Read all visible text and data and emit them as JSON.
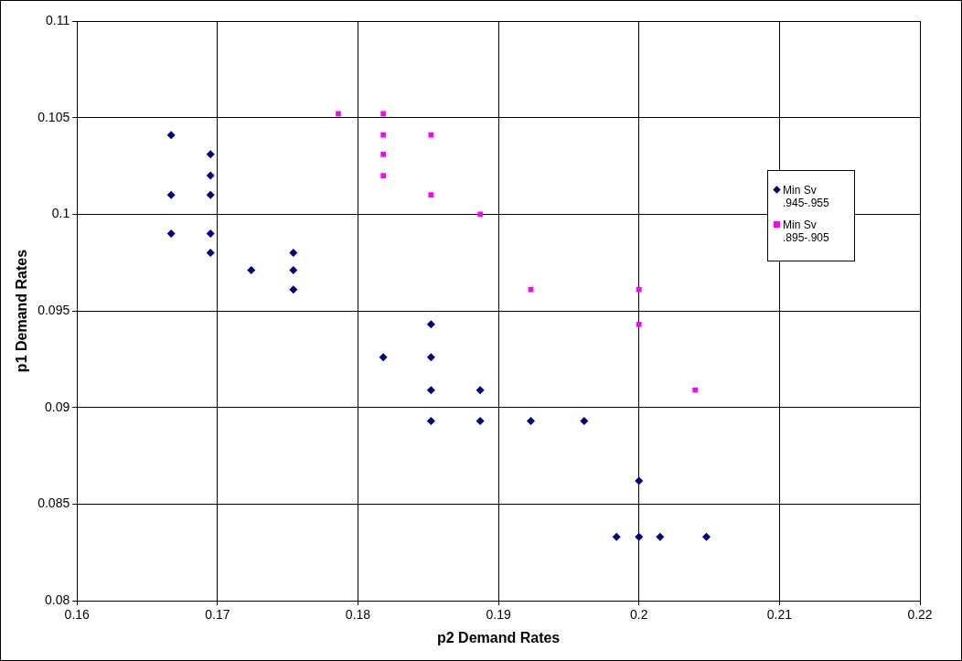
{
  "chart_data": {
    "type": "scatter",
    "xlabel": "p2 Demand Rates",
    "ylabel": "p1 Demand Rates",
    "xlim": [
      0.16,
      0.22
    ],
    "xticks": [
      0.16,
      0.17,
      0.18,
      0.19,
      0.2,
      0.21,
      0.22
    ],
    "ylim": [
      0.08,
      0.11
    ],
    "yticks": [
      0.08,
      0.085,
      0.09,
      0.095,
      0.1,
      0.105,
      0.11
    ],
    "grid": true,
    "legend": "right",
    "series": [
      {
        "name": "Min Sv .945-.955",
        "color": "#000080",
        "marker": "diamond",
        "x": [
          0.1667,
          0.1667,
          0.1667,
          0.1695,
          0.1695,
          0.1695,
          0.1695,
          0.1695,
          0.1724,
          0.1754,
          0.1754,
          0.1754,
          0.1818,
          0.1852,
          0.1852,
          0.1852,
          0.1852,
          0.1887,
          0.1887,
          0.1923,
          0.1961,
          0.2,
          0.1984,
          0.2,
          0.2015,
          0.2048
        ],
        "values": [
          0.1041,
          0.101,
          0.099,
          0.1031,
          0.102,
          0.101,
          0.099,
          0.098,
          0.0971,
          0.098,
          0.0971,
          0.0961,
          0.0926,
          0.0943,
          0.0926,
          0.0909,
          0.0893,
          0.0909,
          0.0893,
          0.0893,
          0.0893,
          0.0862,
          0.0833,
          0.0833,
          0.0833,
          0.0833
        ]
      },
      {
        "name": "Min Sv .895-.905",
        "color": "#ff00ff",
        "marker": "square",
        "x": [
          0.1786,
          0.1818,
          0.1818,
          0.1818,
          0.1818,
          0.1852,
          0.1852,
          0.1887,
          0.1923,
          0.2,
          0.2,
          0.204
        ],
        "values": [
          0.1052,
          0.1052,
          0.1041,
          0.1031,
          0.102,
          0.1041,
          0.101,
          0.1,
          0.0961,
          0.0961,
          0.0943,
          0.0909
        ]
      }
    ]
  }
}
